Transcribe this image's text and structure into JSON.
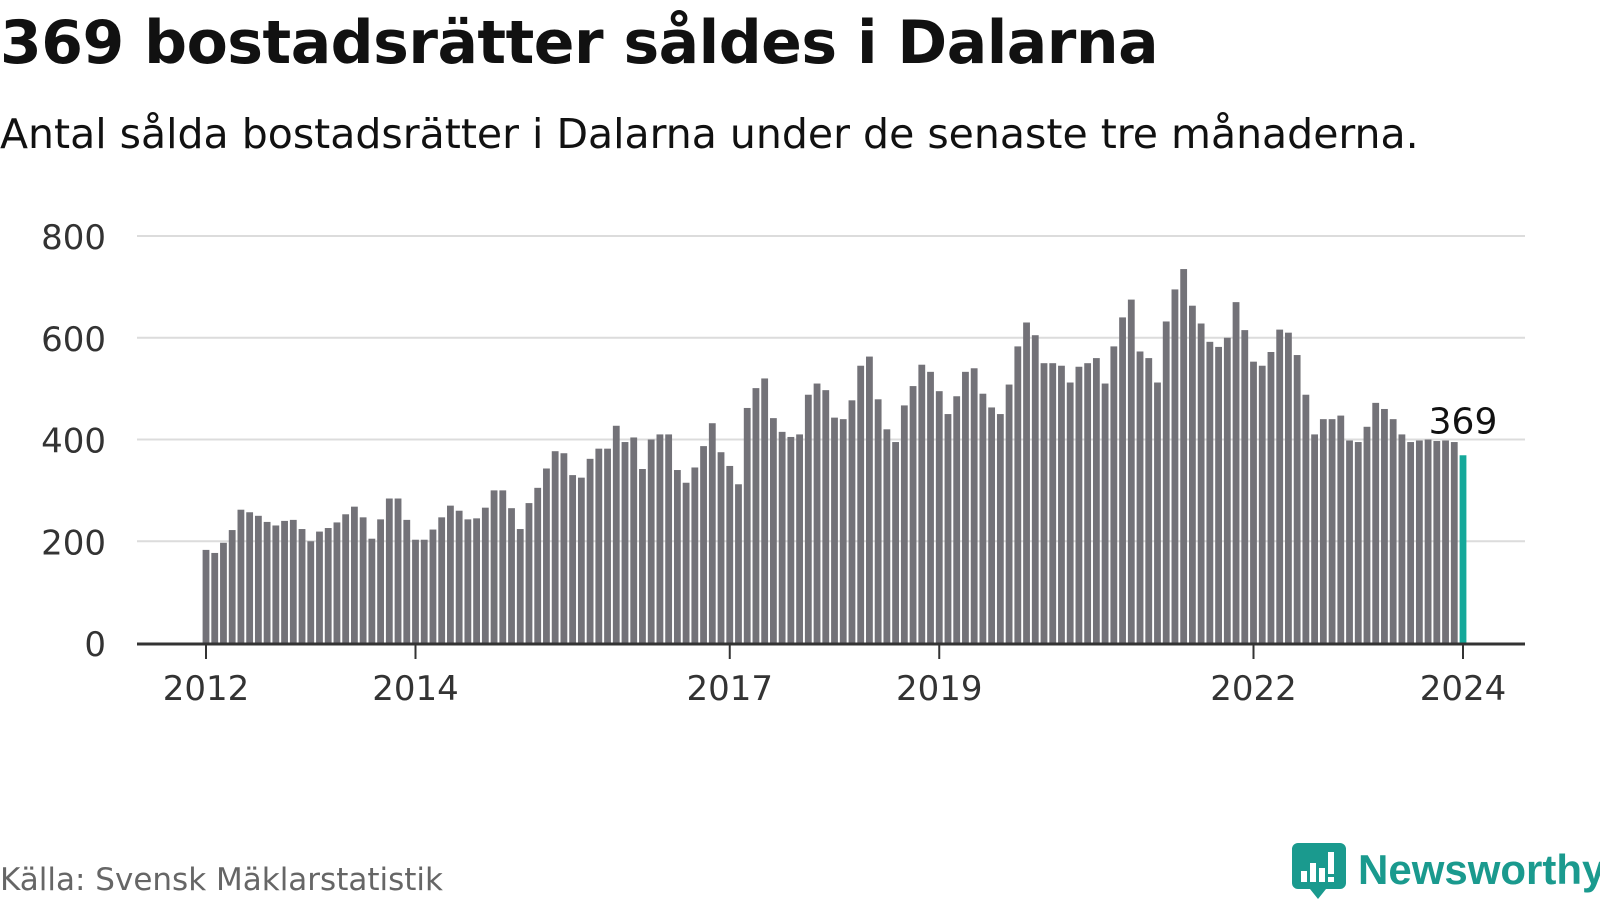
{
  "header": {
    "title": "369 bostadsrätter såldes i Dalarna",
    "subtitle": "Antal sålda bostadsrätter i Dalarna under de senaste tre månaderna."
  },
  "footer": {
    "source": "Källa: Svensk Mäklarstatistik",
    "brand": "Newsworthy"
  },
  "colors": {
    "bar": "#737278",
    "highlight": "#14a89a",
    "grid": "#dcdcdc",
    "axis": "#333333",
    "brand": "#1a9a8e"
  },
  "icons": {
    "logo": "bar-chart-speech-bubble-icon"
  },
  "chart_data": {
    "type": "bar",
    "title": "369 bostadsrätter såldes i Dalarna",
    "xlabel": "",
    "ylabel": "",
    "ylim": [
      0,
      800
    ],
    "yticks": [
      0,
      200,
      400,
      600,
      800
    ],
    "grid": true,
    "xtick_labels": [
      {
        "label": "2012",
        "index": 0
      },
      {
        "label": "2014",
        "index": 24
      },
      {
        "label": "2017",
        "index": 60
      },
      {
        "label": "2019",
        "index": 84
      },
      {
        "label": "2022",
        "index": 120
      },
      {
        "label": "2024",
        "index": 144
      }
    ],
    "start": "2012-01",
    "end": "2024-01",
    "highlight": {
      "index": 144,
      "value": 369,
      "label": "369"
    },
    "series": [
      {
        "name": "Antal sålda bostadsrätter (rullande tre månader)",
        "values": [
          183,
          177,
          197,
          222,
          262,
          257,
          250,
          238,
          231,
          240,
          242,
          224,
          200,
          219,
          226,
          237,
          253,
          268,
          247,
          205,
          243,
          284,
          284,
          242,
          203,
          203,
          223,
          247,
          270,
          260,
          243,
          245,
          266,
          300,
          300,
          265,
          224,
          275,
          305,
          343,
          377,
          373,
          330,
          325,
          362,
          382,
          382,
          427,
          395,
          404,
          342,
          400,
          410,
          410,
          340,
          315,
          345,
          387,
          432,
          375,
          348,
          312,
          462,
          501,
          520,
          442,
          415,
          405,
          410,
          488,
          510,
          497,
          443,
          440,
          477,
          545,
          563,
          479,
          420,
          395,
          467,
          505,
          547,
          533,
          495,
          450,
          485,
          533,
          540,
          490,
          463,
          450,
          508,
          583,
          630,
          605,
          550,
          550,
          545,
          512,
          543,
          550,
          560,
          510,
          583,
          640,
          675,
          573,
          560,
          512,
          632,
          695,
          735,
          663,
          628,
          592,
          582,
          600,
          670,
          615,
          553,
          545,
          572,
          616,
          610,
          566,
          488,
          410,
          440,
          440,
          447,
          398,
          395,
          425,
          472,
          460,
          440,
          410,
          395,
          398,
          400,
          397,
          398,
          395,
          369
        ]
      }
    ]
  }
}
